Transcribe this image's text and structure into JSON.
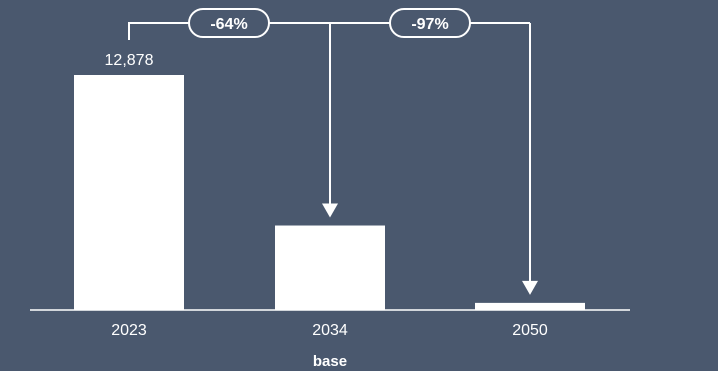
{
  "chart_data": {
    "type": "bar",
    "categories": [
      "2023",
      "2034",
      "2050"
    ],
    "values": [
      12878,
      4630,
      390
    ],
    "data_labels": [
      "12,878",
      "",
      ""
    ],
    "xlabel": "base",
    "ylabel": "",
    "ylim": [
      0,
      12878
    ],
    "grid": false,
    "annotations": [
      {
        "from": "2023",
        "to": "2034",
        "label": "-64%"
      },
      {
        "from": "2023",
        "to": "2050",
        "label": "-97%"
      }
    ],
    "colors": {
      "background": "#4a586e",
      "bar": "#ffffff",
      "annotation": "#ffffff"
    }
  }
}
